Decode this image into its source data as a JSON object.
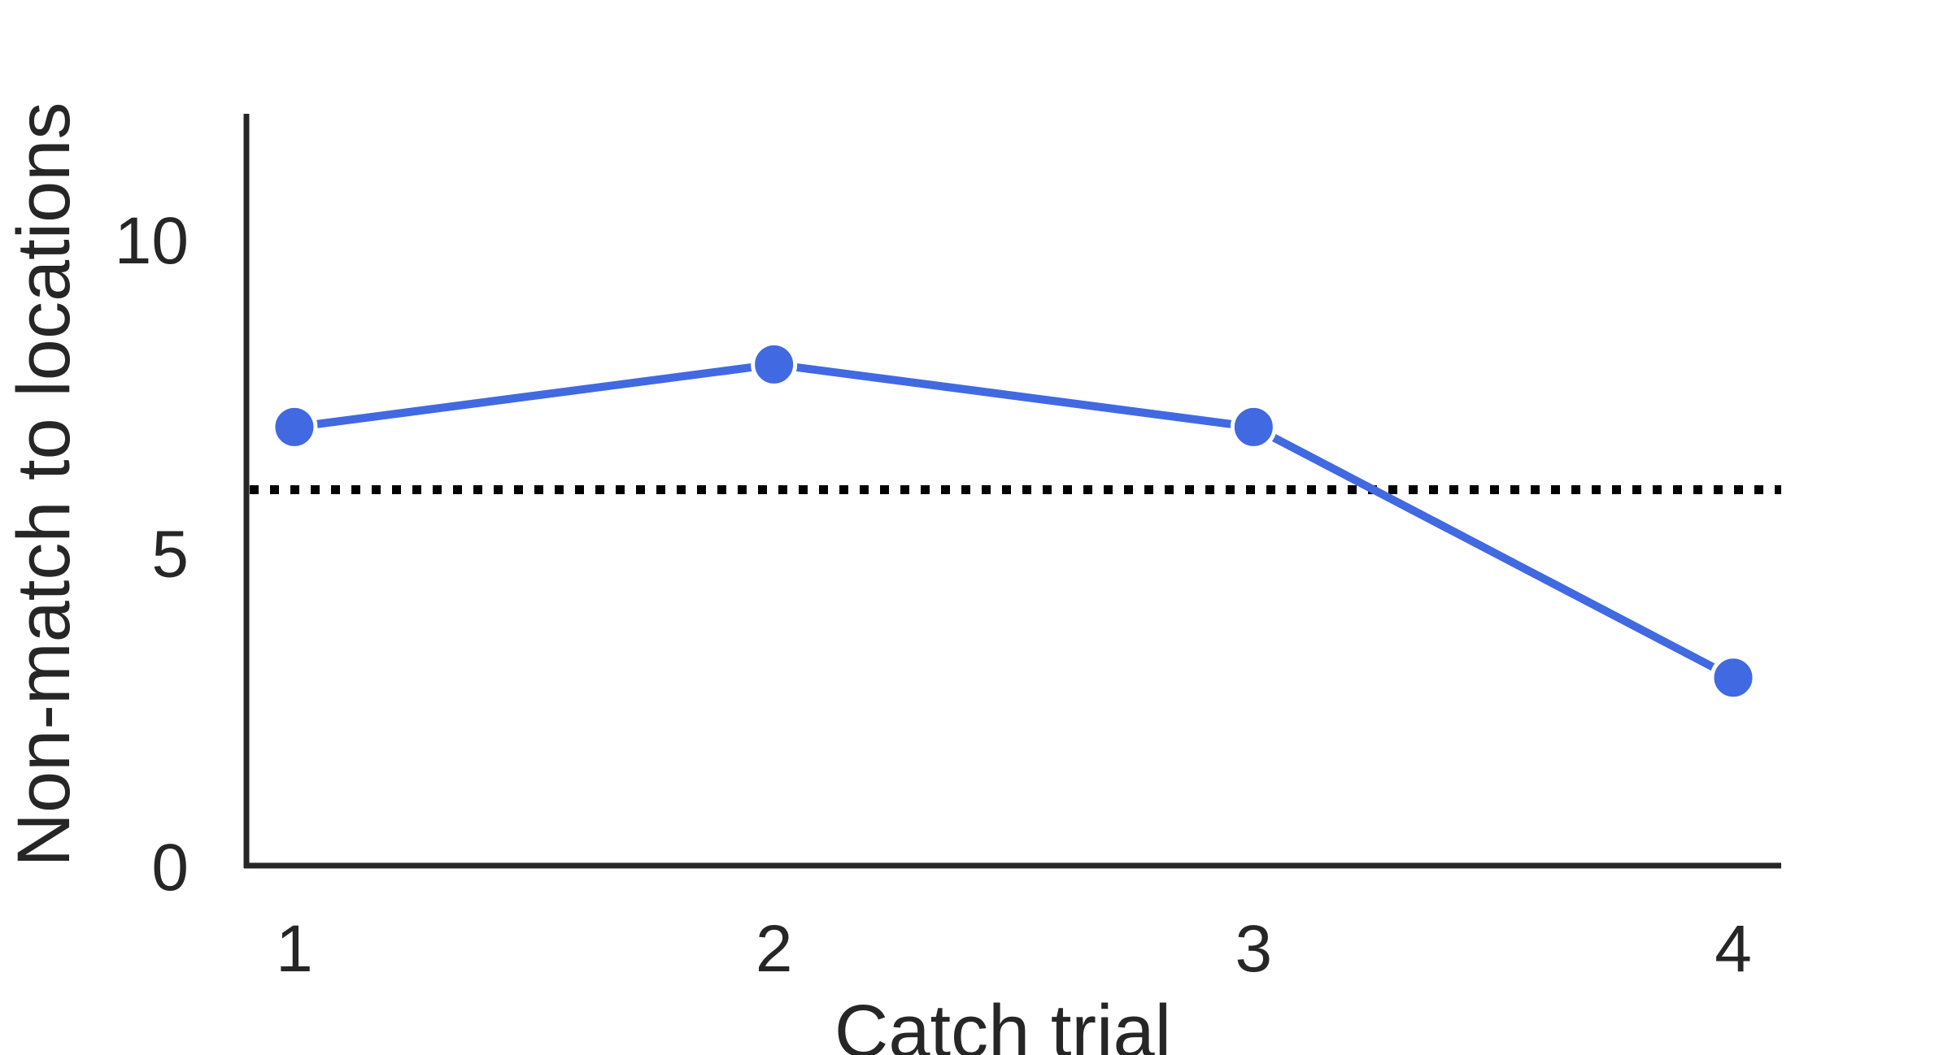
{
  "chart_data": {
    "type": "line",
    "title": "",
    "xlabel": "Catch trial",
    "ylabel": "Non-match to locations",
    "x": [
      1,
      2,
      3,
      4
    ],
    "series": [
      {
        "values": [
          7,
          8,
          7,
          3
        ],
        "color": "#4169e1"
      }
    ],
    "reference_line": {
      "y": 6,
      "style": "dotted",
      "color": "#000000"
    },
    "xlim": [
      0.9,
      4.1
    ],
    "ylim": [
      0,
      12
    ],
    "xticks": [
      "1",
      "2",
      "3",
      "4"
    ],
    "yticks": [
      "0",
      "5",
      "10"
    ],
    "grid": false,
    "legend": "none",
    "axis_color": "#262626"
  }
}
